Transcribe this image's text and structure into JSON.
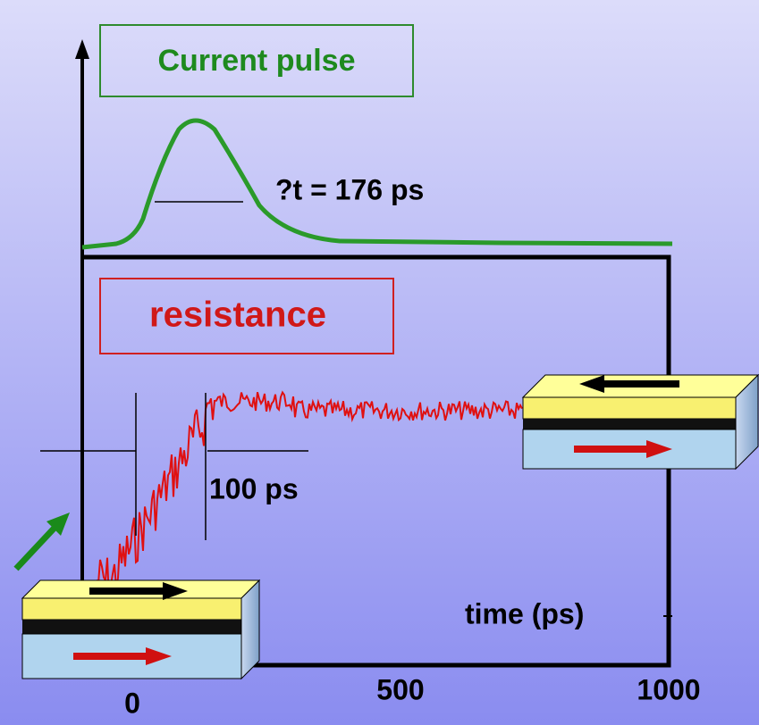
{
  "pulse_label": "Current pulse",
  "pulse_width": "?t = 176 ps",
  "resistance_label": "resistance",
  "rise_time": "100 ps",
  "x_axis_label": "time (ps)",
  "x_ticks": [
    "0",
    "500",
    "1000"
  ]
}
